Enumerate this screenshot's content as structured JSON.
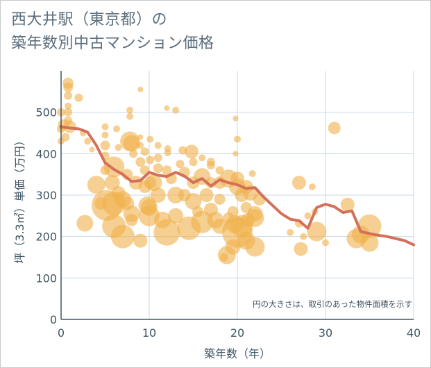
{
  "page": {
    "title_line1": "西大井駅（東京都）の",
    "title_line2": "築年数別中古マンション価格"
  },
  "chart_data": {
    "type": "scatter",
    "xlabel": "築年数（年）",
    "ylabel": "坪（3.3㎡）単価（万円）",
    "xlim": [
      0,
      40
    ],
    "ylim": [
      0,
      600
    ],
    "x_ticks": [
      0,
      10,
      20,
      30,
      40
    ],
    "y_ticks": [
      0,
      100,
      200,
      300,
      400,
      500
    ],
    "grid": true,
    "note": "円の大きさは、取引のあった物件面積を示す",
    "colors": {
      "bubble": "#f0b04a",
      "line": "#d4705a",
      "grid": "#c9d7e3",
      "axis": "#3f5563"
    },
    "scatter": [
      {
        "x": 0,
        "y": 430,
        "s": 5
      },
      {
        "x": 0,
        "y": 460,
        "s": 6
      },
      {
        "x": 0,
        "y": 500,
        "s": 6
      },
      {
        "x": 0.3,
        "y": 470,
        "s": 8
      },
      {
        "x": 0.5,
        "y": 440,
        "s": 6
      },
      {
        "x": 0.8,
        "y": 570,
        "s": 8
      },
      {
        "x": 0.8,
        "y": 560,
        "s": 7
      },
      {
        "x": 0.8,
        "y": 540,
        "s": 6
      },
      {
        "x": 0.8,
        "y": 515,
        "s": 5
      },
      {
        "x": 0.8,
        "y": 500,
        "s": 6
      },
      {
        "x": 0.8,
        "y": 480,
        "s": 6
      },
      {
        "x": 1,
        "y": 465,
        "s": 9
      },
      {
        "x": 2,
        "y": 535,
        "s": 6
      },
      {
        "x": 2.5,
        "y": 450,
        "s": 5
      },
      {
        "x": 3,
        "y": 430,
        "s": 5
      },
      {
        "x": 3.5,
        "y": 410,
        "s": 4
      },
      {
        "x": 2.7,
        "y": 232,
        "s": 12
      },
      {
        "x": 4,
        "y": 325,
        "s": 13
      },
      {
        "x": 4.5,
        "y": 280,
        "s": 9
      },
      {
        "x": 5,
        "y": 465,
        "s": 5
      },
      {
        "x": 5,
        "y": 445,
        "s": 5
      },
      {
        "x": 5,
        "y": 420,
        "s": 7
      },
      {
        "x": 5,
        "y": 395,
        "s": 6
      },
      {
        "x": 5,
        "y": 360,
        "s": 7
      },
      {
        "x": 5.2,
        "y": 275,
        "s": 22
      },
      {
        "x": 5.8,
        "y": 330,
        "s": 11
      },
      {
        "x": 6,
        "y": 368,
        "s": 15
      },
      {
        "x": 6,
        "y": 280,
        "s": 17
      },
      {
        "x": 6,
        "y": 225,
        "s": 17
      },
      {
        "x": 6.3,
        "y": 460,
        "s": 5
      },
      {
        "x": 6.5,
        "y": 415,
        "s": 5
      },
      {
        "x": 6.5,
        "y": 305,
        "s": 10
      },
      {
        "x": 7,
        "y": 200,
        "s": 17
      },
      {
        "x": 7,
        "y": 290,
        "s": 12
      },
      {
        "x": 7.5,
        "y": 350,
        "s": 8
      },
      {
        "x": 7.5,
        "y": 280,
        "s": 10
      },
      {
        "x": 7.8,
        "y": 430,
        "s": 14
      },
      {
        "x": 8,
        "y": 425,
        "s": 12
      },
      {
        "x": 8,
        "y": 255,
        "s": 12
      },
      {
        "x": 8,
        "y": 240,
        "s": 9
      },
      {
        "x": 7.8,
        "y": 505,
        "s": 5
      },
      {
        "x": 7.8,
        "y": 490,
        "s": 5
      },
      {
        "x": 8.2,
        "y": 400,
        "s": 6
      },
      {
        "x": 8.5,
        "y": 330,
        "s": 10
      },
      {
        "x": 9,
        "y": 555,
        "s": 4
      },
      {
        "x": 9,
        "y": 440,
        "s": 4
      },
      {
        "x": 9,
        "y": 420,
        "s": 5
      },
      {
        "x": 9,
        "y": 380,
        "s": 7
      },
      {
        "x": 9,
        "y": 190,
        "s": 10
      },
      {
        "x": 9.5,
        "y": 405,
        "s": 6
      },
      {
        "x": 9.5,
        "y": 360,
        "s": 7
      },
      {
        "x": 9.5,
        "y": 320,
        "s": 9
      },
      {
        "x": 9.8,
        "y": 275,
        "s": 13
      },
      {
        "x": 10,
        "y": 250,
        "s": 15
      },
      {
        "x": 10,
        "y": 270,
        "s": 12
      },
      {
        "x": 10.1,
        "y": 435,
        "s": 5
      },
      {
        "x": 10.1,
        "y": 385,
        "s": 6
      },
      {
        "x": 10.1,
        "y": 330,
        "s": 9
      },
      {
        "x": 10.5,
        "y": 330,
        "s": 12
      },
      {
        "x": 11,
        "y": 420,
        "s": 5
      },
      {
        "x": 11,
        "y": 390,
        "s": 6
      },
      {
        "x": 11,
        "y": 365,
        "s": 7
      },
      {
        "x": 11,
        "y": 300,
        "s": 11
      },
      {
        "x": 11.5,
        "y": 240,
        "s": 12
      },
      {
        "x": 12,
        "y": 210,
        "s": 19
      },
      {
        "x": 12,
        "y": 510,
        "s": 4
      },
      {
        "x": 12.1,
        "y": 412,
        "s": 5
      },
      {
        "x": 12.1,
        "y": 402,
        "s": 5
      },
      {
        "x": 12,
        "y": 360,
        "s": 7
      },
      {
        "x": 12.5,
        "y": 340,
        "s": 8
      },
      {
        "x": 13,
        "y": 505,
        "s": 5
      },
      {
        "x": 13,
        "y": 300,
        "s": 12
      },
      {
        "x": 13,
        "y": 250,
        "s": 11
      },
      {
        "x": 13.5,
        "y": 375,
        "s": 6
      },
      {
        "x": 13.8,
        "y": 408,
        "s": 6
      },
      {
        "x": 14,
        "y": 355,
        "s": 8
      },
      {
        "x": 14,
        "y": 300,
        "s": 9
      },
      {
        "x": 14.5,
        "y": 220,
        "s": 17
      },
      {
        "x": 14.8,
        "y": 405,
        "s": 10
      },
      {
        "x": 15,
        "y": 380,
        "s": 6
      },
      {
        "x": 15,
        "y": 330,
        "s": 9
      },
      {
        "x": 15,
        "y": 285,
        "s": 12
      },
      {
        "x": 15.5,
        "y": 260,
        "s": 8
      },
      {
        "x": 16,
        "y": 390,
        "s": 5
      },
      {
        "x": 16,
        "y": 345,
        "s": 12
      },
      {
        "x": 16,
        "y": 235,
        "s": 16
      },
      {
        "x": 16.5,
        "y": 300,
        "s": 10
      },
      {
        "x": 17,
        "y": 380,
        "s": 6
      },
      {
        "x": 17,
        "y": 372,
        "s": 6
      },
      {
        "x": 17,
        "y": 330,
        "s": 8
      },
      {
        "x": 17,
        "y": 265,
        "s": 10
      },
      {
        "x": 17.5,
        "y": 240,
        "s": 12
      },
      {
        "x": 18,
        "y": 360,
        "s": 6
      },
      {
        "x": 18,
        "y": 330,
        "s": 9
      },
      {
        "x": 18,
        "y": 290,
        "s": 8
      },
      {
        "x": 18,
        "y": 225,
        "s": 11
      },
      {
        "x": 18.5,
        "y": 150,
        "s": 6
      },
      {
        "x": 18.8,
        "y": 155,
        "s": 13
      },
      {
        "x": 19,
        "y": 340,
        "s": 13
      },
      {
        "x": 19,
        "y": 245,
        "s": 8
      },
      {
        "x": 19.5,
        "y": 175,
        "s": 11
      },
      {
        "x": 19.5,
        "y": 260,
        "s": 8
      },
      {
        "x": 19.7,
        "y": 230,
        "s": 13
      },
      {
        "x": 19.8,
        "y": 485,
        "s": 4
      },
      {
        "x": 20,
        "y": 435,
        "s": 5
      },
      {
        "x": 19.8,
        "y": 400,
        "s": 4
      },
      {
        "x": 20,
        "y": 340,
        "s": 10
      },
      {
        "x": 20,
        "y": 320,
        "s": 12
      },
      {
        "x": 20,
        "y": 210,
        "s": 22
      },
      {
        "x": 20.5,
        "y": 225,
        "s": 16
      },
      {
        "x": 20.5,
        "y": 300,
        "s": 10
      },
      {
        "x": 21,
        "y": 320,
        "s": 10
      },
      {
        "x": 21,
        "y": 270,
        "s": 8
      },
      {
        "x": 21,
        "y": 190,
        "s": 13
      },
      {
        "x": 21.2,
        "y": 240,
        "s": 10
      },
      {
        "x": 21.5,
        "y": 305,
        "s": 11
      },
      {
        "x": 21.7,
        "y": 352,
        "s": 5
      },
      {
        "x": 22,
        "y": 255,
        "s": 11
      },
      {
        "x": 22,
        "y": 245,
        "s": 13
      },
      {
        "x": 22,
        "y": 175,
        "s": 14
      },
      {
        "x": 22.5,
        "y": 290,
        "s": 9
      },
      {
        "x": 26,
        "y": 210,
        "s": 5
      },
      {
        "x": 27,
        "y": 330,
        "s": 10
      },
      {
        "x": 27.2,
        "y": 170,
        "s": 10
      },
      {
        "x": 27,
        "y": 232,
        "s": 6
      },
      {
        "x": 27.5,
        "y": 200,
        "s": 5
      },
      {
        "x": 28,
        "y": 250,
        "s": 5
      },
      {
        "x": 28.5,
        "y": 320,
        "s": 5
      },
      {
        "x": 28.8,
        "y": 260,
        "s": 5
      },
      {
        "x": 29,
        "y": 212,
        "s": 14
      },
      {
        "x": 30,
        "y": 185,
        "s": 5
      },
      {
        "x": 31,
        "y": 462,
        "s": 9
      },
      {
        "x": 32.5,
        "y": 277,
        "s": 10
      },
      {
        "x": 33.5,
        "y": 195,
        "s": 14
      },
      {
        "x": 34,
        "y": 205,
        "s": 13
      },
      {
        "x": 35,
        "y": 225,
        "s": 17
      },
      {
        "x": 35,
        "y": 185,
        "s": 13
      }
    ],
    "line": {
      "x": [
        0,
        1,
        2,
        3,
        4,
        5,
        6,
        7,
        8,
        9,
        10,
        11,
        12,
        13,
        14,
        15,
        16,
        17,
        18,
        19,
        20,
        21,
        22,
        23,
        24,
        25,
        26,
        27,
        28,
        29,
        30,
        31,
        32,
        33,
        34,
        35,
        36,
        37,
        38,
        39,
        40
      ],
      "y": [
        465,
        462,
        460,
        452,
        420,
        378,
        362,
        350,
        333,
        335,
        355,
        348,
        345,
        355,
        346,
        330,
        340,
        322,
        337,
        330,
        325,
        316,
        318,
        295,
        275,
        255,
        242,
        238,
        220,
        270,
        278,
        272,
        258,
        262,
        212,
        207,
        203,
        200,
        195,
        190,
        180
      ]
    }
  }
}
